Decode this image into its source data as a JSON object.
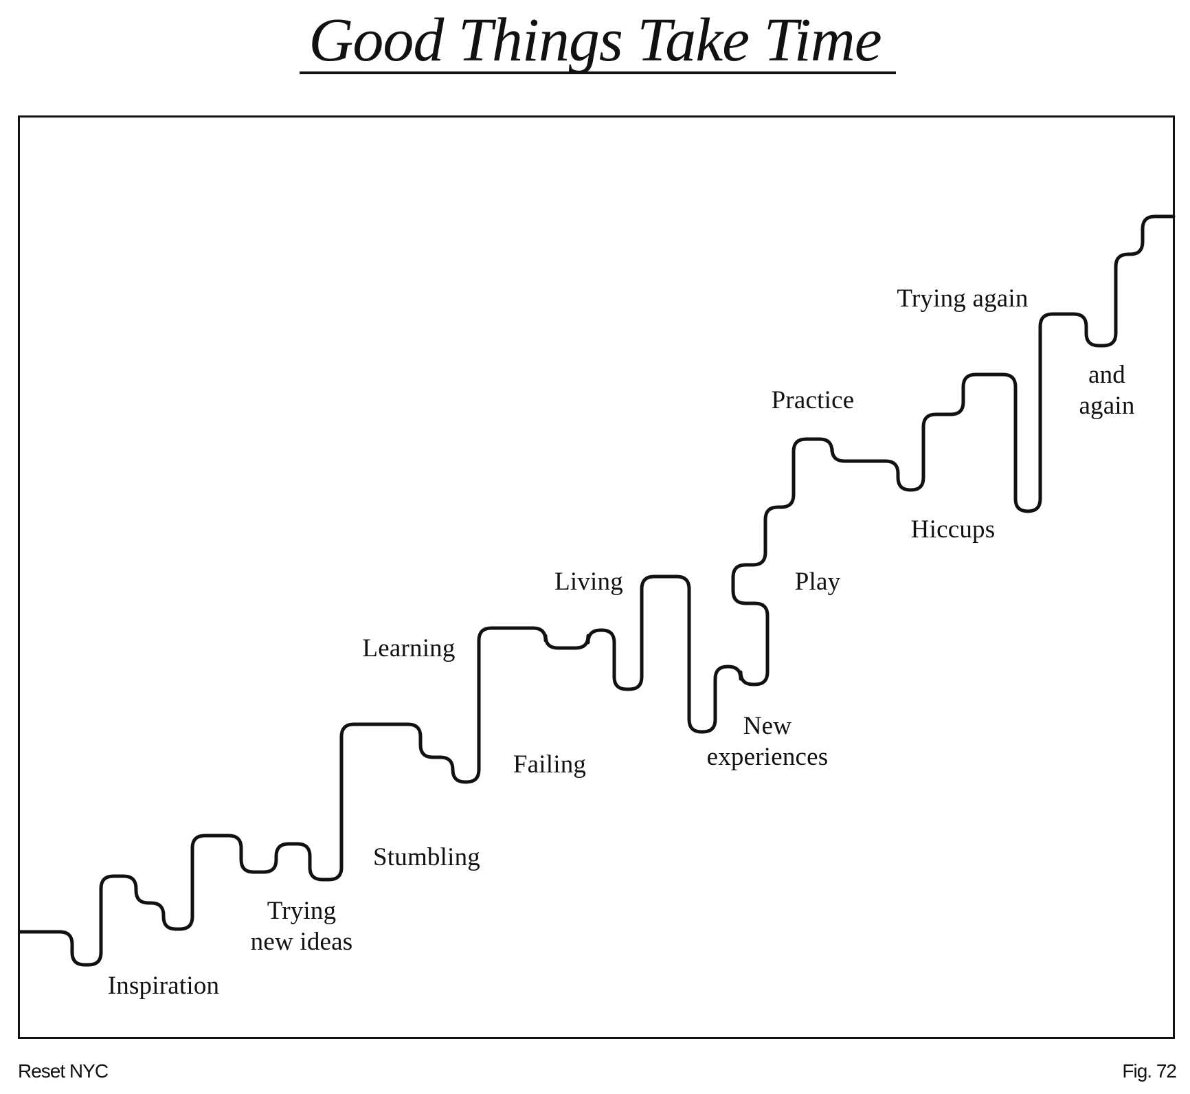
{
  "title": "Good Things Take Time",
  "stages": {
    "inspiration": "Inspiration",
    "trying_new_ideas": [
      "Trying",
      "new ideas"
    ],
    "stumbling": "Stumbling",
    "learning": "Learning",
    "failing": "Failing",
    "living": "Living",
    "new_experiences": [
      "New",
      "experiences"
    ],
    "play": "Play",
    "practice": "Practice",
    "hiccups": "Hiccups",
    "trying_again": "Trying again",
    "and_again": [
      "and",
      "again"
    ]
  },
  "footer": {
    "left": "Reset NYC",
    "right": "Fig. 72"
  },
  "colors": {
    "ink": "#111111",
    "background": "#ffffff"
  }
}
